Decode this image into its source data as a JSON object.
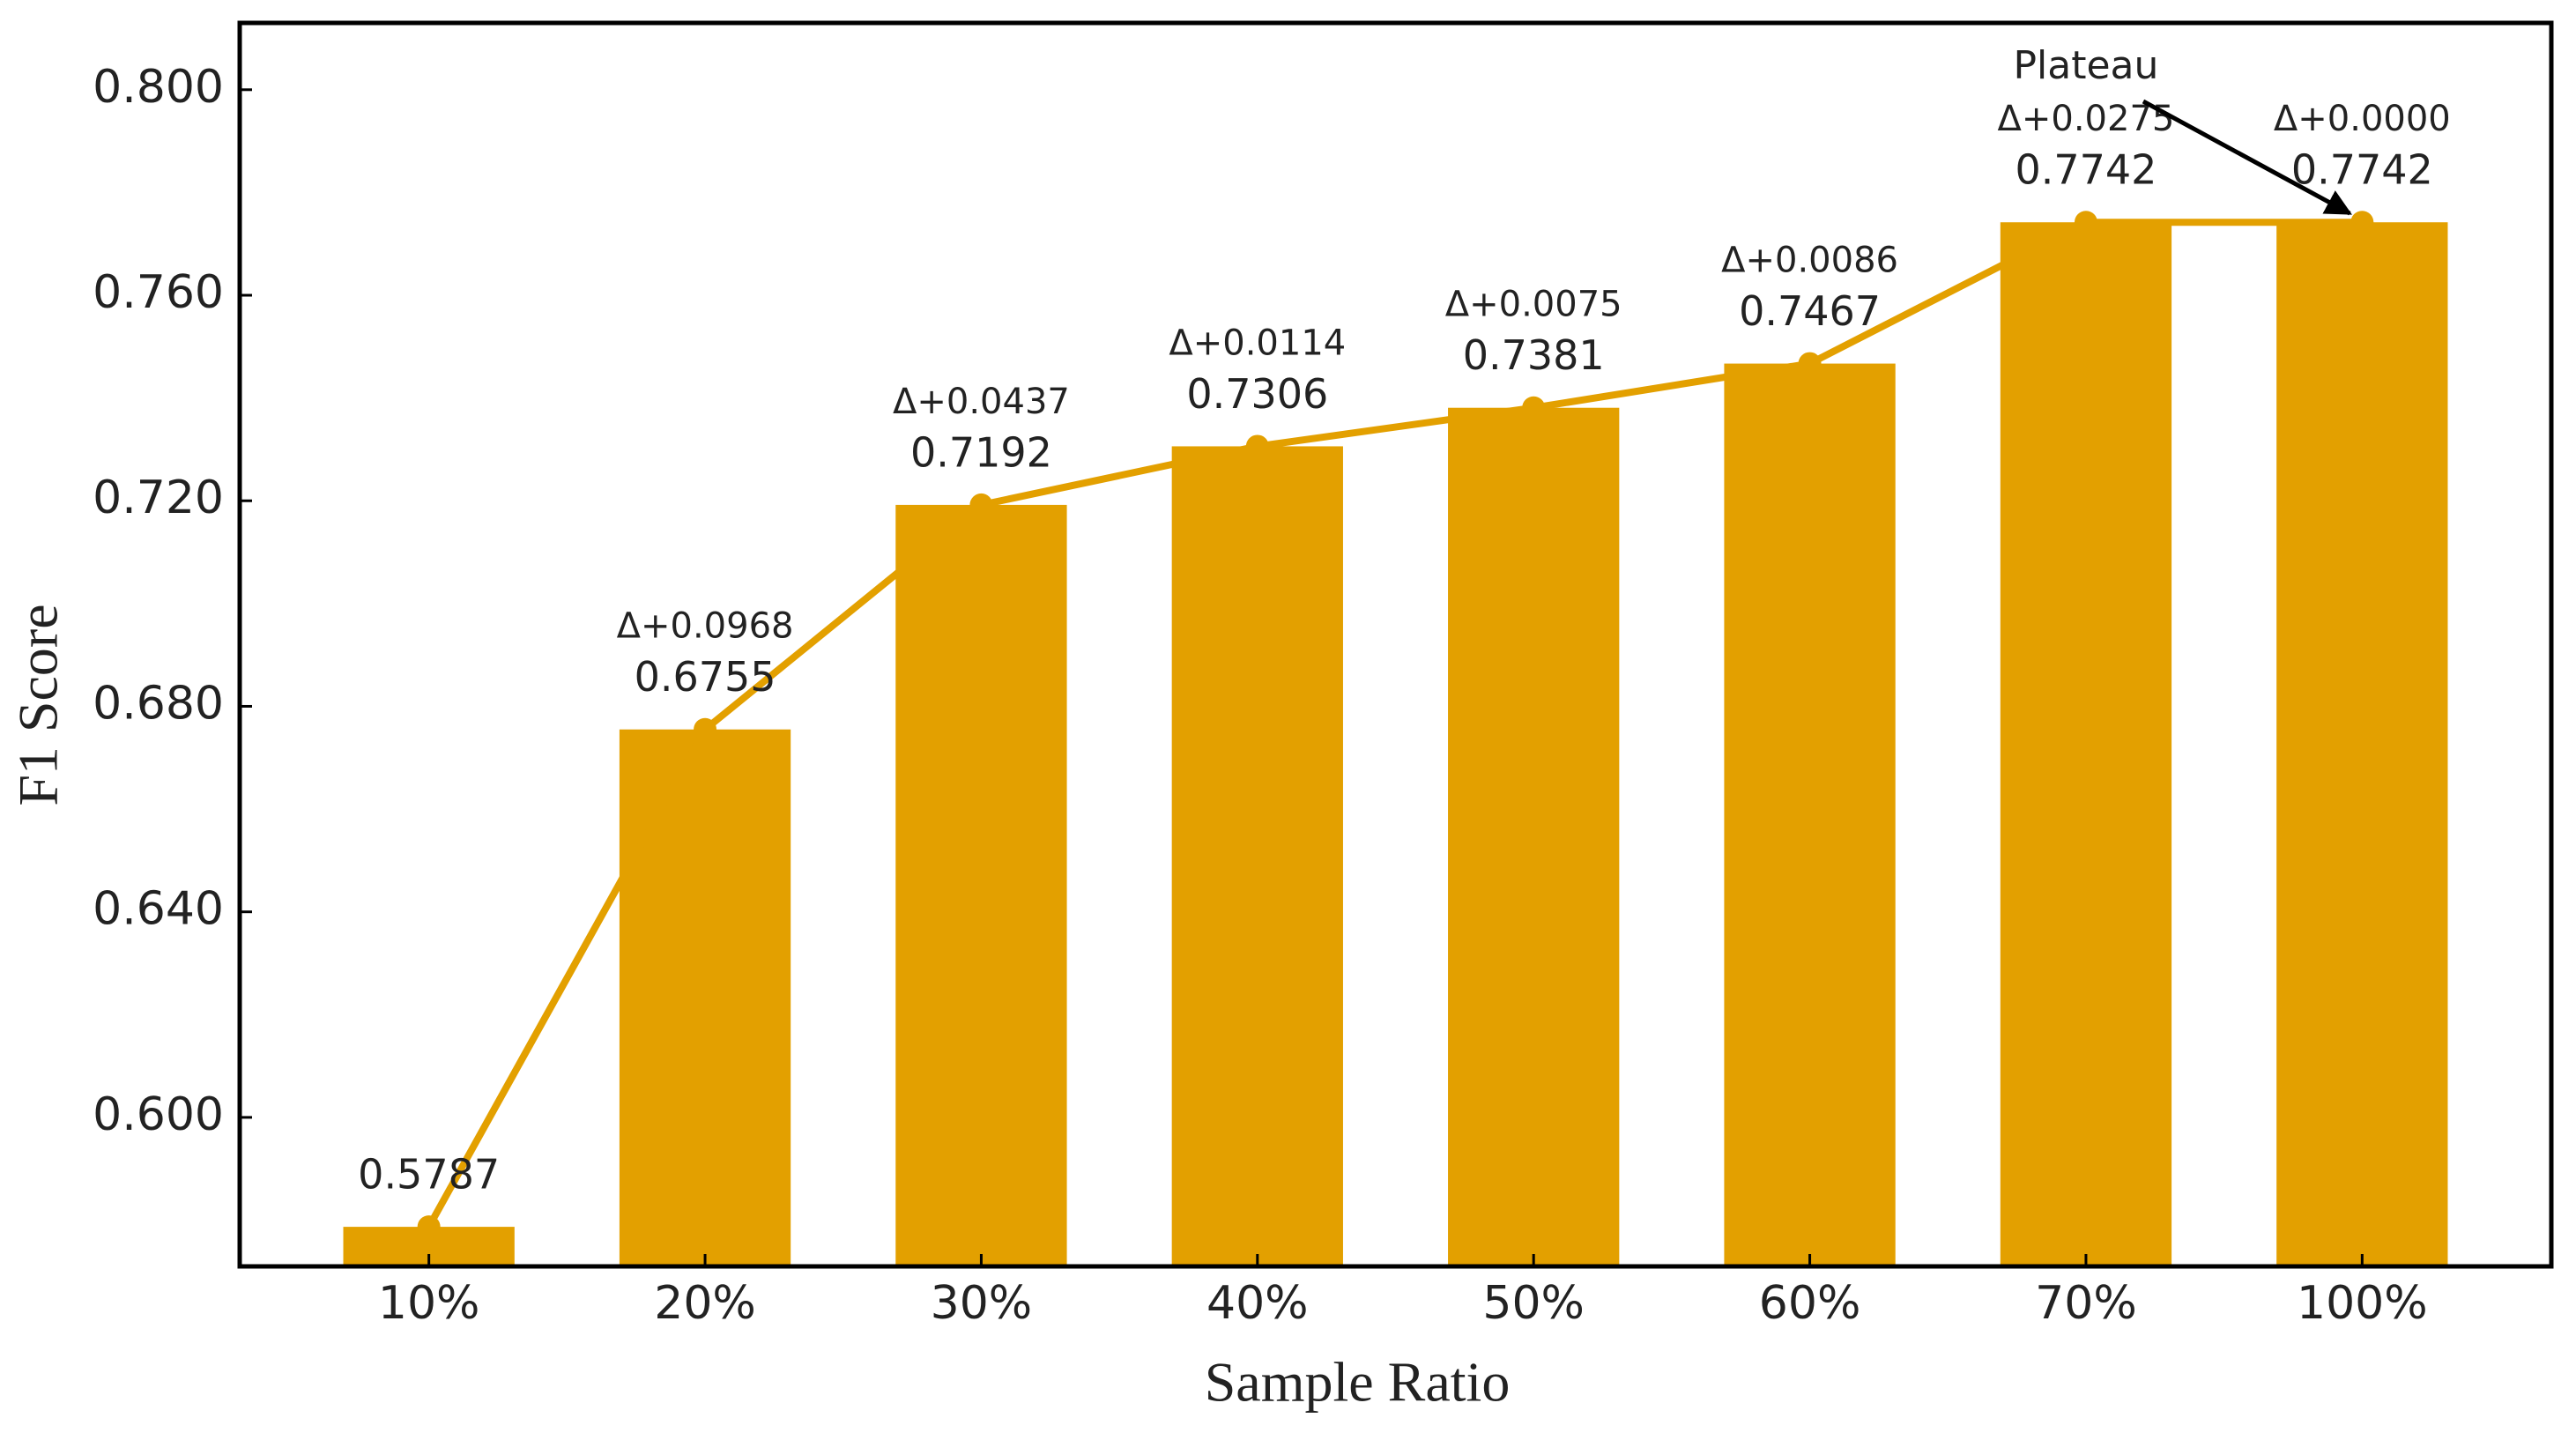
{
  "chart_data": {
    "type": "bar_line",
    "x_label": "Sample Ratio",
    "y_label": "F1 Score",
    "categories": [
      "10%",
      "20%",
      "30%",
      "40%",
      "50%",
      "60%",
      "70%",
      "100%"
    ],
    "values": [
      0.5787,
      0.6755,
      0.7192,
      0.7306,
      0.7381,
      0.7467,
      0.7742,
      0.7742
    ],
    "delta_labels": [
      null,
      "Δ+0.0968",
      "Δ+0.0437",
      "Δ+0.0114",
      "Δ+0.0075",
      "Δ+0.0086",
      "Δ+0.0275",
      "Δ+0.0000"
    ],
    "color": "#e3a000",
    "ylim": [
      0.571,
      0.813
    ],
    "yticks": [
      {
        "value": 0.6,
        "label": "0.600"
      },
      {
        "value": 0.64,
        "label": "0.640"
      },
      {
        "value": 0.68,
        "label": "0.680"
      },
      {
        "value": 0.72,
        "label": "0.720"
      },
      {
        "value": 0.76,
        "label": "0.760"
      },
      {
        "value": 0.8,
        "label": "0.800"
      }
    ],
    "annotation": "Plateau"
  }
}
